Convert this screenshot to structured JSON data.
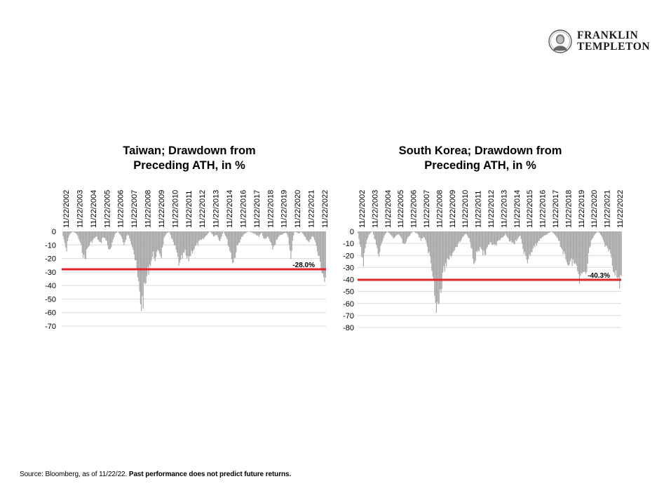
{
  "brand": {
    "line1": "FRANKLIN",
    "line2": "TEMPLETON",
    "seal_icon": "benjamin-franklin-portrait-icon"
  },
  "colors": {
    "bars": "#a6a6a6",
    "threshold": "#e0262b",
    "grid": "#d9d9d9"
  },
  "footnote": {
    "source": "Source: Bloomberg, as of 11/22/22.",
    "disclaimer": "Past performance does not predict future returns."
  },
  "chart_data": [
    {
      "type": "bar",
      "title_line1": "Taiwan; Drawdown from",
      "title_line2": "Preceding ATH, in %",
      "x_ticks": [
        "11/22/2002",
        "11/22/2003",
        "11/22/2004",
        "11/22/2005",
        "11/22/2006",
        "11/22/2007",
        "11/22/2008",
        "11/22/2009",
        "11/22/2010",
        "11/22/2011",
        "11/22/2012",
        "11/22/2013",
        "11/22/2014",
        "11/22/2016",
        "11/22/2017",
        "11/22/2018",
        "11/22/2019",
        "11/22/2020",
        "11/22/2021",
        "11/22/2022"
      ],
      "y_ticks": [
        0,
        -10,
        -20,
        -30,
        -40,
        -50,
        -60,
        -70
      ],
      "ylim": [
        -70,
        0
      ],
      "xlim": [
        2002.9,
        2022.9
      ],
      "x_axis_position": "top",
      "grid": true,
      "threshold": {
        "value": -28.0,
        "label": "-28.0%"
      },
      "drawdown_profile": [
        [
          2002.9,
          0
        ],
        [
          2003.05,
          -8
        ],
        [
          2003.25,
          -16
        ],
        [
          2003.35,
          -5
        ],
        [
          2003.5,
          -2
        ],
        [
          2003.7,
          0
        ],
        [
          2004.0,
          -2
        ],
        [
          2004.2,
          -7
        ],
        [
          2004.4,
          -14
        ],
        [
          2004.6,
          -23
        ],
        [
          2004.8,
          -14
        ],
        [
          2005.0,
          -10
        ],
        [
          2005.3,
          -6
        ],
        [
          2005.5,
          -4
        ],
        [
          2005.8,
          -10
        ],
        [
          2006.0,
          -4
        ],
        [
          2006.3,
          -8
        ],
        [
          2006.5,
          -17
        ],
        [
          2006.7,
          -10
        ],
        [
          2006.9,
          -2
        ],
        [
          2007.1,
          0
        ],
        [
          2007.4,
          -4
        ],
        [
          2007.6,
          -12
        ],
        [
          2007.75,
          -5
        ],
        [
          2007.9,
          -2
        ],
        [
          2008.05,
          -6
        ],
        [
          2008.3,
          -14
        ],
        [
          2008.5,
          -28
        ],
        [
          2008.65,
          -40
        ],
        [
          2008.8,
          -52
        ],
        [
          2008.9,
          -58
        ],
        [
          2009.05,
          -52
        ],
        [
          2009.2,
          -42
        ],
        [
          2009.35,
          -34
        ],
        [
          2009.5,
          -27
        ],
        [
          2009.8,
          -18
        ],
        [
          2010.0,
          -22
        ],
        [
          2010.2,
          -14
        ],
        [
          2010.4,
          -20
        ],
        [
          2010.6,
          -6
        ],
        [
          2010.8,
          -2
        ],
        [
          2011.0,
          0
        ],
        [
          2011.2,
          -6
        ],
        [
          2011.5,
          -14
        ],
        [
          2011.8,
          -28
        ],
        [
          2011.95,
          -22
        ],
        [
          2012.2,
          -16
        ],
        [
          2012.4,
          -24
        ],
        [
          2012.7,
          -16
        ],
        [
          2013.0,
          -12
        ],
        [
          2013.3,
          -8
        ],
        [
          2013.6,
          -6
        ],
        [
          2013.9,
          -2
        ],
        [
          2014.1,
          0
        ],
        [
          2014.4,
          -4
        ],
        [
          2014.6,
          -2
        ],
        [
          2014.8,
          -8
        ],
        [
          2015.1,
          0
        ],
        [
          2015.3,
          -4
        ],
        [
          2015.6,
          -15
        ],
        [
          2015.85,
          -25
        ],
        [
          2016.1,
          -14
        ],
        [
          2016.4,
          -6
        ],
        [
          2016.7,
          -2
        ],
        [
          2017.0,
          0
        ],
        [
          2017.5,
          -2
        ],
        [
          2017.8,
          -4
        ],
        [
          2018.0,
          -1
        ],
        [
          2018.2,
          -7
        ],
        [
          2018.5,
          -4
        ],
        [
          2018.8,
          -14
        ],
        [
          2019.0,
          -10
        ],
        [
          2019.3,
          -4
        ],
        [
          2019.6,
          -2
        ],
        [
          2019.85,
          -1
        ],
        [
          2020.0,
          -4
        ],
        [
          2020.2,
          -22
        ],
        [
          2020.35,
          -6
        ],
        [
          2020.5,
          0
        ],
        [
          2020.8,
          -2
        ],
        [
          2021.0,
          0
        ],
        [
          2021.3,
          -5
        ],
        [
          2021.6,
          -8
        ],
        [
          2021.9,
          -3
        ],
        [
          2022.1,
          -10
        ],
        [
          2022.3,
          -20
        ],
        [
          2022.5,
          -28
        ],
        [
          2022.7,
          -36
        ],
        [
          2022.8,
          -40
        ],
        [
          2022.9,
          -33
        ]
      ]
    },
    {
      "type": "bar",
      "title_line1": "South Korea; Drawdown from",
      "title_line2": "Preceding ATH, in %",
      "x_ticks": [
        "11/22/2002",
        "11/22/2003",
        "11/22/2004",
        "11/22/2005",
        "11/22/2006",
        "11/22/2007",
        "11/22/2008",
        "11/22/2009",
        "11/22/2010",
        "11/22/2011",
        "11/22/2012",
        "11/22/2013",
        "11/22/2014",
        "11/22/2015",
        "11/22/2016",
        "11/22/2017",
        "11/22/2018",
        "11/22/2019",
        "11/22/2020",
        "11/22/2021",
        "11/22/2022"
      ],
      "y_ticks": [
        0,
        -10,
        -20,
        -30,
        -40,
        -50,
        -60,
        -70,
        -80
      ],
      "ylim": [
        -80,
        0
      ],
      "xlim": [
        2002.9,
        2022.9
      ],
      "x_axis_position": "top",
      "grid": true,
      "threshold": {
        "value": -40.3,
        "label": "-40.3%"
      },
      "drawdown_profile": [
        [
          2002.9,
          -2
        ],
        [
          2003.1,
          -16
        ],
        [
          2003.3,
          -28
        ],
        [
          2003.45,
          -18
        ],
        [
          2003.6,
          -6
        ],
        [
          2003.8,
          -2
        ],
        [
          2004.0,
          0
        ],
        [
          2004.2,
          -8
        ],
        [
          2004.5,
          -22
        ],
        [
          2004.65,
          -14
        ],
        [
          2004.9,
          -4
        ],
        [
          2005.1,
          0
        ],
        [
          2005.4,
          -3
        ],
        [
          2005.6,
          -6
        ],
        [
          2005.9,
          -2
        ],
        [
          2006.1,
          -4
        ],
        [
          2006.4,
          -12
        ],
        [
          2006.6,
          -8
        ],
        [
          2006.9,
          -2
        ],
        [
          2007.1,
          0
        ],
        [
          2007.4,
          -2
        ],
        [
          2007.7,
          -8
        ],
        [
          2007.9,
          -4
        ],
        [
          2008.1,
          -12
        ],
        [
          2008.3,
          -20
        ],
        [
          2008.5,
          -32
        ],
        [
          2008.7,
          -48
        ],
        [
          2008.85,
          -62
        ],
        [
          2008.95,
          -68
        ],
        [
          2009.1,
          -58
        ],
        [
          2009.3,
          -44
        ],
        [
          2009.5,
          -30
        ],
        [
          2009.8,
          -24
        ],
        [
          2010.0,
          -20
        ],
        [
          2010.3,
          -14
        ],
        [
          2010.6,
          -10
        ],
        [
          2010.9,
          -4
        ],
        [
          2011.1,
          -2
        ],
        [
          2011.4,
          -8
        ],
        [
          2011.7,
          -26
        ],
        [
          2011.9,
          -20
        ],
        [
          2012.2,
          -14
        ],
        [
          2012.5,
          -22
        ],
        [
          2012.8,
          -14
        ],
        [
          2013.0,
          -10
        ],
        [
          2013.3,
          -14
        ],
        [
          2013.6,
          -8
        ],
        [
          2013.9,
          -6
        ],
        [
          2014.1,
          -2
        ],
        [
          2014.4,
          -8
        ],
        [
          2014.7,
          -12
        ],
        [
          2014.9,
          -8
        ],
        [
          2015.2,
          -4
        ],
        [
          2015.5,
          -18
        ],
        [
          2015.7,
          -28
        ],
        [
          2015.9,
          -22
        ],
        [
          2016.2,
          -16
        ],
        [
          2016.5,
          -10
        ],
        [
          2016.8,
          -6
        ],
        [
          2017.0,
          -4
        ],
        [
          2017.3,
          -2
        ],
        [
          2017.6,
          0
        ],
        [
          2017.9,
          -4
        ],
        [
          2018.1,
          -8
        ],
        [
          2018.4,
          -16
        ],
        [
          2018.7,
          -24
        ],
        [
          2018.9,
          -30
        ],
        [
          2019.2,
          -26
        ],
        [
          2019.5,
          -32
        ],
        [
          2019.7,
          -40
        ],
        [
          2019.85,
          -36
        ],
        [
          2020.0,
          -30
        ],
        [
          2020.2,
          -44
        ],
        [
          2020.35,
          -22
        ],
        [
          2020.6,
          -8
        ],
        [
          2020.9,
          -2
        ],
        [
          2021.1,
          0
        ],
        [
          2021.4,
          -4
        ],
        [
          2021.7,
          -14
        ],
        [
          2021.95,
          -18
        ],
        [
          2022.2,
          -28
        ],
        [
          2022.4,
          -36
        ],
        [
          2022.6,
          -44
        ],
        [
          2022.75,
          -48
        ],
        [
          2022.9,
          -42
        ]
      ]
    }
  ]
}
